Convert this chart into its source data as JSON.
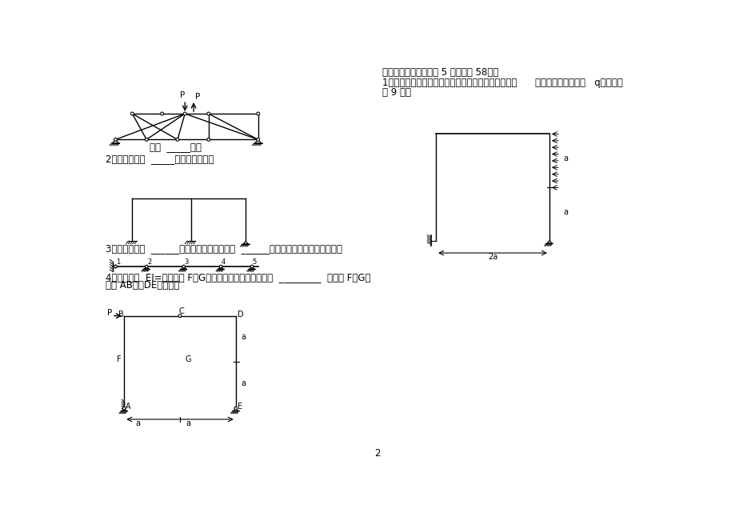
{
  "bg_color": "#ffffff",
  "line_color": "#000000",
  "text_color": "#000000",
  "page_num": "2",
  "sec4_title": "四、计算题（本大题共 5 小题，共 58分）",
  "sec4_q1_l1": "1、画图示结构的内力图（弯矩图，剪力图，轴力图）      ，其中均布荷数值为   q。（本小",
  "sec4_q1_l2": "题 9 分）",
  "q1_zero": "共有  _____零杆",
  "q2_text": "2、图示结构为  _____次超静定结构。",
  "q3_text": "3、图示结构有  ______个多余约束，其中链杆  ______是必要约束，绝对不能去掉。",
  "q4_l1": "4、图示结构  EI=常数，则 F、G两点的水平相对线位移等于  _________  ，其中 F、G分",
  "q4_l2": "别为 AB杆，DE杆中点。",
  "font_size": 8.5,
  "font_size_label": 7,
  "font_size_small": 7.5
}
